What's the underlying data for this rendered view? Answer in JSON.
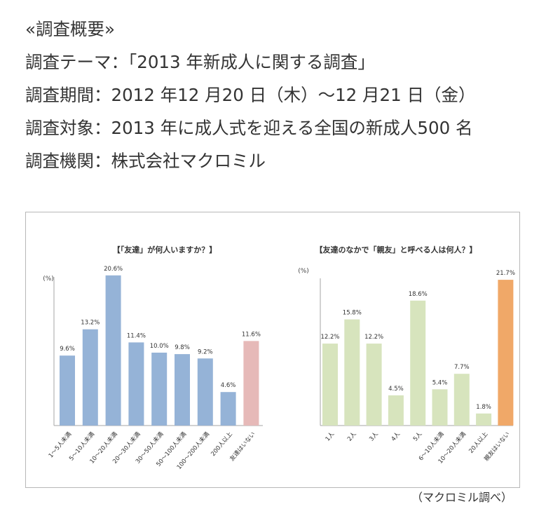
{
  "summary": {
    "heading": "«調査概要»",
    "theme": "調査テーマ：「2013 年新成人に関する調査」",
    "period": "調査期間：2012 年12 月20 日（木）～12 月21 日（金）",
    "target": "調査対象：2013 年に成人式を迎える全国の新成人500 名",
    "agency": "調査機関：株式会社マクロミル"
  },
  "source": "（マクロミル調べ）",
  "colors": {
    "left_bar": "#95b3d7",
    "left_highlight": "#e6b9b8",
    "right_bar": "#d7e4bd",
    "right_highlight": "#f0a868",
    "axis": "#a6a6a6"
  },
  "chart_data": [
    {
      "type": "bar",
      "title": "【「友達」が何人いますか？】",
      "ylabel": "(%)",
      "ylim": [
        0,
        21
      ],
      "grid": false,
      "categories": [
        "1～5人未満",
        "5～10人未満",
        "10～20人未満",
        "20～30人未満",
        "30～50人未満",
        "50～100人未満",
        "100～200人未満",
        "200人以上",
        "友達はいない"
      ],
      "values": [
        9.6,
        13.2,
        20.6,
        11.4,
        10.0,
        9.8,
        9.2,
        4.6,
        11.6
      ],
      "labels": [
        "9.6%",
        "13.2%",
        "20.6%",
        "11.4%",
        "10.0%",
        "9.8%",
        "9.2%",
        "4.6%",
        "11.6%"
      ]
    },
    {
      "type": "bar",
      "title": "【友達のなかで「親友」と呼べる人は何人？】",
      "ylabel": "(%)",
      "ylim": [
        0,
        22
      ],
      "grid": false,
      "categories": [
        "1人",
        "2人",
        "3人",
        "4人",
        "5人",
        "6～10人未満",
        "10～20人未満",
        "20人以上",
        "親友はいない"
      ],
      "values": [
        12.2,
        15.8,
        12.2,
        4.5,
        18.6,
        5.4,
        7.7,
        1.8,
        21.7
      ],
      "labels": [
        "12.2%",
        "15.8%",
        "12.2%",
        "4.5%",
        "18.6%",
        "5.4%",
        "7.7%",
        "1.8%",
        "21.7%"
      ]
    }
  ]
}
